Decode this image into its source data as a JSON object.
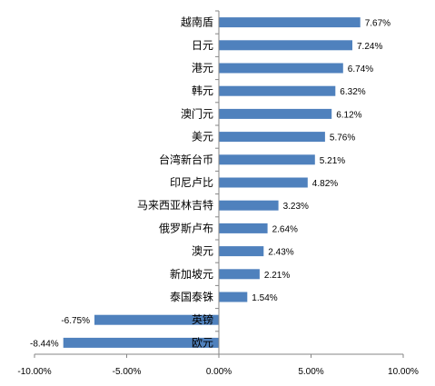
{
  "chart_data": {
    "type": "bar",
    "orientation": "horizontal",
    "categories": [
      "越南盾",
      "日元",
      "港元",
      "韩元",
      "澳门元",
      "美元",
      "台湾新台币",
      "印尼卢比",
      "马来西亚林吉特",
      "俄罗斯卢布",
      "澳元",
      "新加坡元",
      "泰国泰铢",
      "英镑",
      "欧元"
    ],
    "values": [
      7.67,
      7.24,
      6.74,
      6.32,
      6.12,
      5.76,
      5.21,
      4.82,
      3.23,
      2.64,
      2.43,
      2.21,
      1.54,
      -6.75,
      -8.44
    ],
    "value_labels": [
      "7.67%",
      "7.24%",
      "6.74%",
      "6.32%",
      "6.12%",
      "5.76%",
      "5.21%",
      "4.82%",
      "3.23%",
      "2.64%",
      "2.43%",
      "2.21%",
      "1.54%",
      "-6.75%",
      "-8.44%"
    ],
    "xlim": [
      -10,
      10
    ],
    "x_ticks": [
      -10,
      -5,
      0,
      5,
      10
    ],
    "x_tick_labels": [
      "-10.00%",
      "-5.00%",
      "0.00%",
      "5.00%",
      "10.00%"
    ],
    "grid": false,
    "legend": "none",
    "title": "",
    "xlabel": "",
    "ylabel": "",
    "bar_color": "#4F81BD",
    "axis_color": "#868686"
  }
}
